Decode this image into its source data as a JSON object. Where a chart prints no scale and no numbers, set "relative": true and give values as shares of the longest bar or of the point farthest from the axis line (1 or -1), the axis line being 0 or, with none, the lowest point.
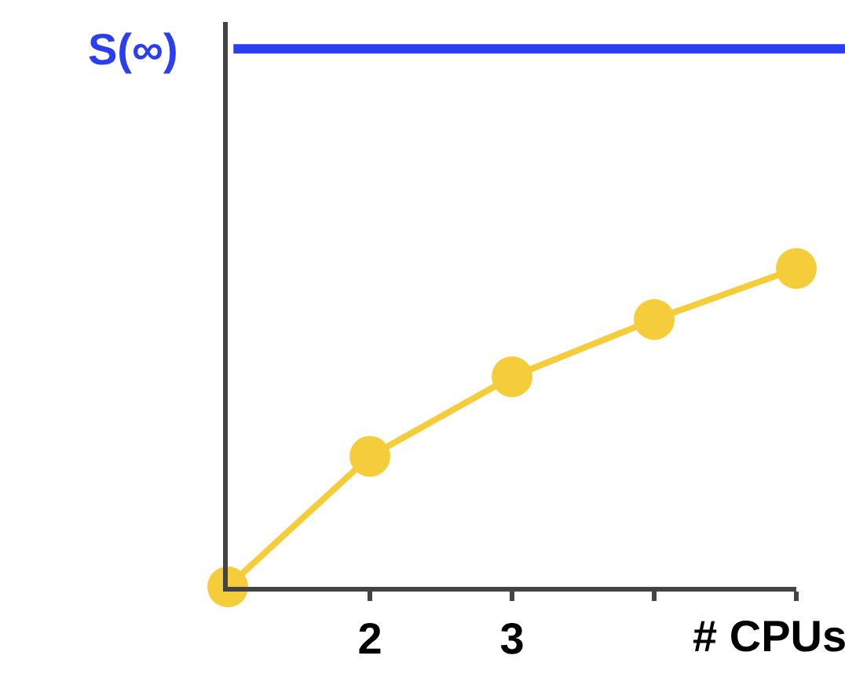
{
  "chart_data": {
    "type": "line",
    "relative": true,
    "x": [
      1,
      2,
      3,
      4,
      5
    ],
    "series": [
      {
        "color": "#f5cc3a",
        "values": [
          0,
          0.41,
          0.66,
          0.84,
          1
        ]
      }
    ],
    "xlim": [
      1,
      5
    ],
    "xticks": [
      2,
      3,
      {
        "value": 4,
        "label": null
      },
      {
        "value": 5,
        "label": null
      }
    ],
    "xlabel": "# CPUs",
    "marker": "circle",
    "line_style": "solid",
    "ref_lines": [
      {
        "axis": "y",
        "value": 1.69,
        "label": "S(∞)",
        "color": "#2b3ff0"
      }
    ]
  }
}
